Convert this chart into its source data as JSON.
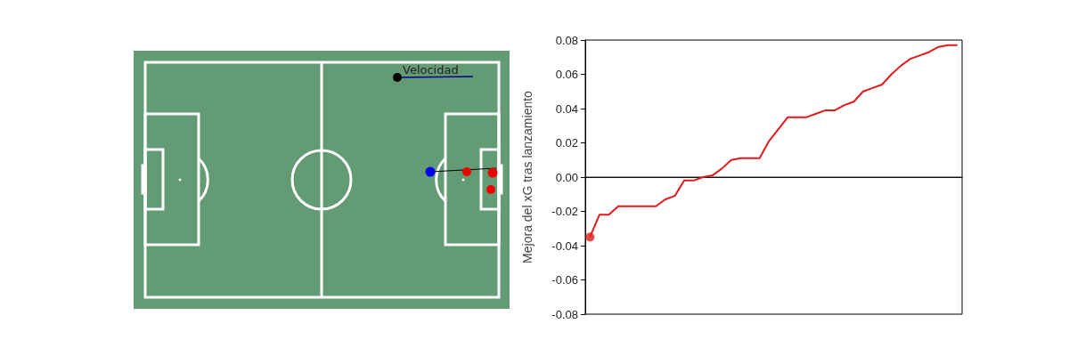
{
  "chart_data": [
    {
      "type": "other",
      "annotations": [
        "Velocidad"
      ]
    },
    {
      "type": "line",
      "ylabel": "Mejora del xG tras lanzamiento",
      "categories": [
        null,
        null,
        null,
        null,
        null,
        null,
        null,
        null,
        null,
        null,
        null,
        null,
        null,
        null,
        null,
        null,
        null,
        null,
        null,
        null,
        null,
        null,
        null,
        null,
        null,
        null,
        null,
        null,
        null,
        null,
        null,
        null,
        null,
        null,
        null,
        null,
        null,
        null,
        null,
        null
      ],
      "series": [
        {
          "color": "#e31a1c",
          "values": [
            -0.035,
            -0.022,
            -0.022,
            -0.017,
            -0.017,
            -0.017,
            -0.017,
            -0.017,
            -0.013,
            -0.011,
            -0.002,
            -0.002,
            0.0,
            0.001,
            0.005,
            0.01,
            0.011,
            0.011,
            0.011,
            0.021,
            0.028,
            0.035,
            0.035,
            0.035,
            0.037,
            0.039,
            0.039,
            0.042,
            0.044,
            0.05,
            0.052,
            0.054,
            0.06,
            0.065,
            0.069,
            0.071,
            0.073,
            0.076,
            0.077,
            0.077
          ]
        },
        {
          "type": "scatter",
          "color": "#e31a1c",
          "values": [
            -0.035,
            null,
            null,
            null,
            null,
            null,
            null,
            null,
            null,
            null,
            null,
            null,
            null,
            null,
            null,
            null,
            null,
            null,
            null,
            null,
            null,
            null,
            null,
            null,
            null,
            null,
            null,
            null,
            null,
            null,
            null,
            null,
            null,
            null,
            null,
            null,
            null,
            null,
            null,
            null
          ]
        }
      ],
      "ylim": [
        -0.08,
        0.08
      ],
      "yticks": [
        {
          "value": -0.08,
          "label": "-0.08"
        },
        {
          "value": -0.06,
          "label": "-0.06"
        },
        {
          "value": -0.04,
          "label": "-0.04"
        },
        {
          "value": -0.02,
          "label": "-0.02"
        },
        {
          "value": 0,
          "label": "0.00"
        },
        {
          "value": 0.02,
          "label": "0.02"
        },
        {
          "value": 0.04,
          "label": "0.04"
        },
        {
          "value": 0.06,
          "label": "0.06"
        },
        {
          "value": 0.08,
          "label": "0.08"
        }
      ],
      "ref_lines": [
        {
          "axis": "y",
          "value": 0,
          "color": "#222222"
        }
      ],
      "tick_labels": "y"
    }
  ]
}
